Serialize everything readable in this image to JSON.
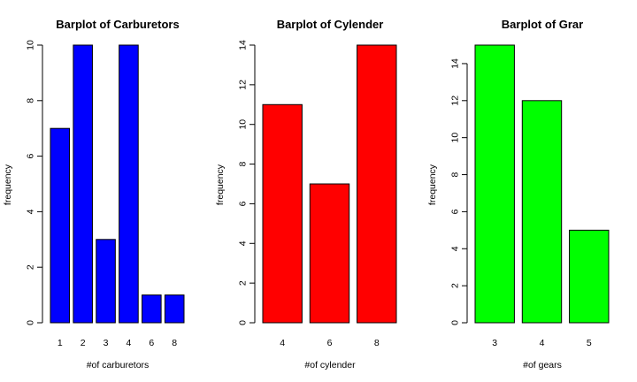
{
  "chart_data": [
    {
      "type": "bar",
      "title": "Barplot of Carburetors",
      "xlabel": "#of carburetors",
      "ylabel": "frequency",
      "categories": [
        "1",
        "2",
        "3",
        "4",
        "6",
        "8"
      ],
      "values": [
        7,
        10,
        3,
        10,
        1,
        1
      ],
      "ylim": [
        0,
        10
      ],
      "yticks": [
        0,
        2,
        4,
        6,
        8,
        10
      ],
      "color": "#0000ff",
      "grid": false
    },
    {
      "type": "bar",
      "title": "Barplot of Cylender",
      "xlabel": "#of cylender",
      "ylabel": "frequency",
      "categories": [
        "4",
        "6",
        "8"
      ],
      "values": [
        11,
        7,
        14
      ],
      "ylim": [
        0,
        14
      ],
      "yticks": [
        0,
        2,
        4,
        6,
        8,
        10,
        12,
        14
      ],
      "color": "#ff0000",
      "grid": false
    },
    {
      "type": "bar",
      "title": "Barplot of Grar",
      "xlabel": "#of gears",
      "ylabel": "frequency",
      "categories": [
        "3",
        "4",
        "5"
      ],
      "values": [
        15,
        12,
        5
      ],
      "ylim": [
        0,
        15
      ],
      "yticks": [
        0,
        2,
        4,
        6,
        8,
        10,
        12,
        14
      ],
      "color": "#00ff00",
      "grid": false
    }
  ]
}
